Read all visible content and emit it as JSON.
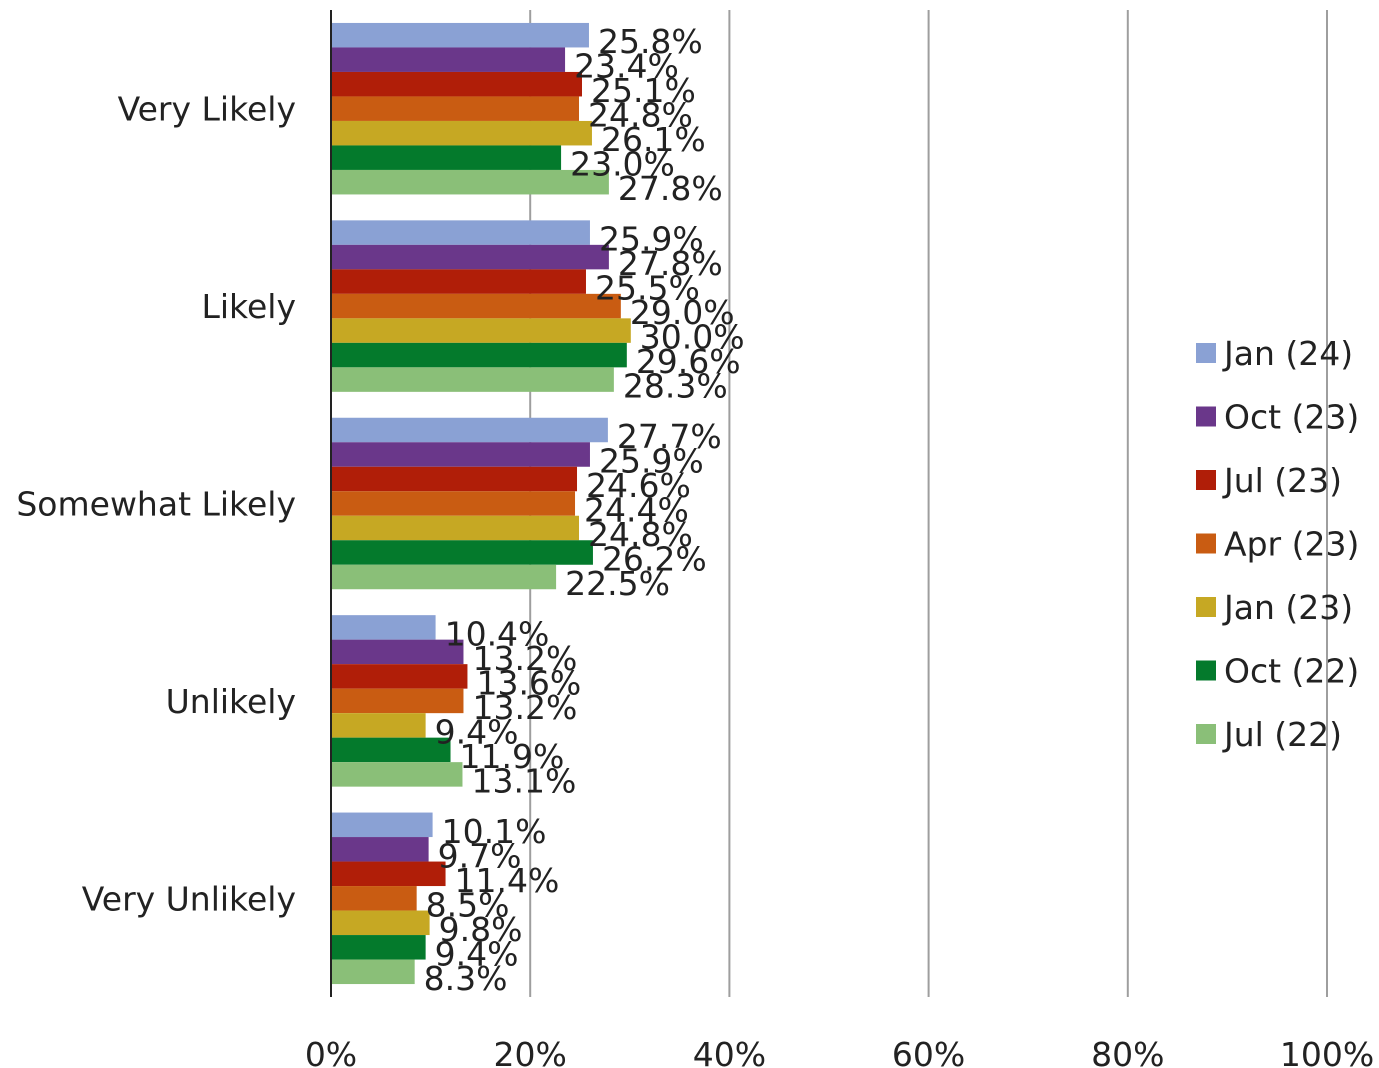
{
  "chart_data": {
    "type": "bar",
    "orientation": "horizontal",
    "categories": [
      "Very Likely",
      "Likely",
      "Somewhat Likely",
      "Unlikely",
      "Very Unlikely"
    ],
    "series": [
      {
        "name": "Jan (24)",
        "color": "#8aa1d4",
        "values": [
          25.8,
          25.9,
          27.7,
          10.4,
          10.1
        ]
      },
      {
        "name": "Oct (23)",
        "color": "#6a378a",
        "values": [
          23.4,
          27.8,
          25.9,
          13.2,
          9.7
        ]
      },
      {
        "name": "Jul (23)",
        "color": "#b01e08",
        "values": [
          25.1,
          25.5,
          24.6,
          13.6,
          11.4
        ]
      },
      {
        "name": "Apr (23)",
        "color": "#c95c12",
        "values": [
          24.8,
          29.0,
          24.4,
          13.2,
          8.5
        ]
      },
      {
        "name": "Jan (23)",
        "color": "#c6a823",
        "values": [
          26.1,
          30.0,
          24.8,
          9.4,
          9.8
        ]
      },
      {
        "name": "Oct (22)",
        "color": "#047a2c",
        "values": [
          23.0,
          29.6,
          26.2,
          11.9,
          9.4
        ]
      },
      {
        "name": "Jul (22)",
        "color": "#8abf78",
        "values": [
          27.8,
          28.3,
          22.5,
          13.1,
          8.3
        ]
      }
    ],
    "data_labels": [
      [
        "25.8%",
        "23.4%",
        "25.1%",
        "24.8%",
        "26.1%",
        "23.0%",
        "27.8%"
      ],
      [
        "25.9%",
        "27.8%",
        "25.5%",
        "29.0%",
        "30.0%",
        "29.6%",
        "28.3%"
      ],
      [
        "27.7%",
        "25.9%",
        "24.6%",
        "24.4%",
        "24.8%",
        "26.2%",
        "22.5%"
      ],
      [
        "10.4%",
        "13.2%",
        "13.6%",
        "13.2%",
        "9.4%",
        "11.9%",
        "13.1%"
      ],
      [
        "10.1%",
        "9.7%",
        "11.4%",
        "8.5%",
        "9.8%",
        "9.4%",
        "8.3%"
      ]
    ],
    "x_ticks": [
      "0%",
      "20%",
      "40%",
      "60%",
      "80%",
      "100%"
    ],
    "xlim": [
      0,
      100
    ],
    "grid": "vertical",
    "legend_position": "right",
    "title": "",
    "xlabel": "",
    "ylabel": ""
  }
}
